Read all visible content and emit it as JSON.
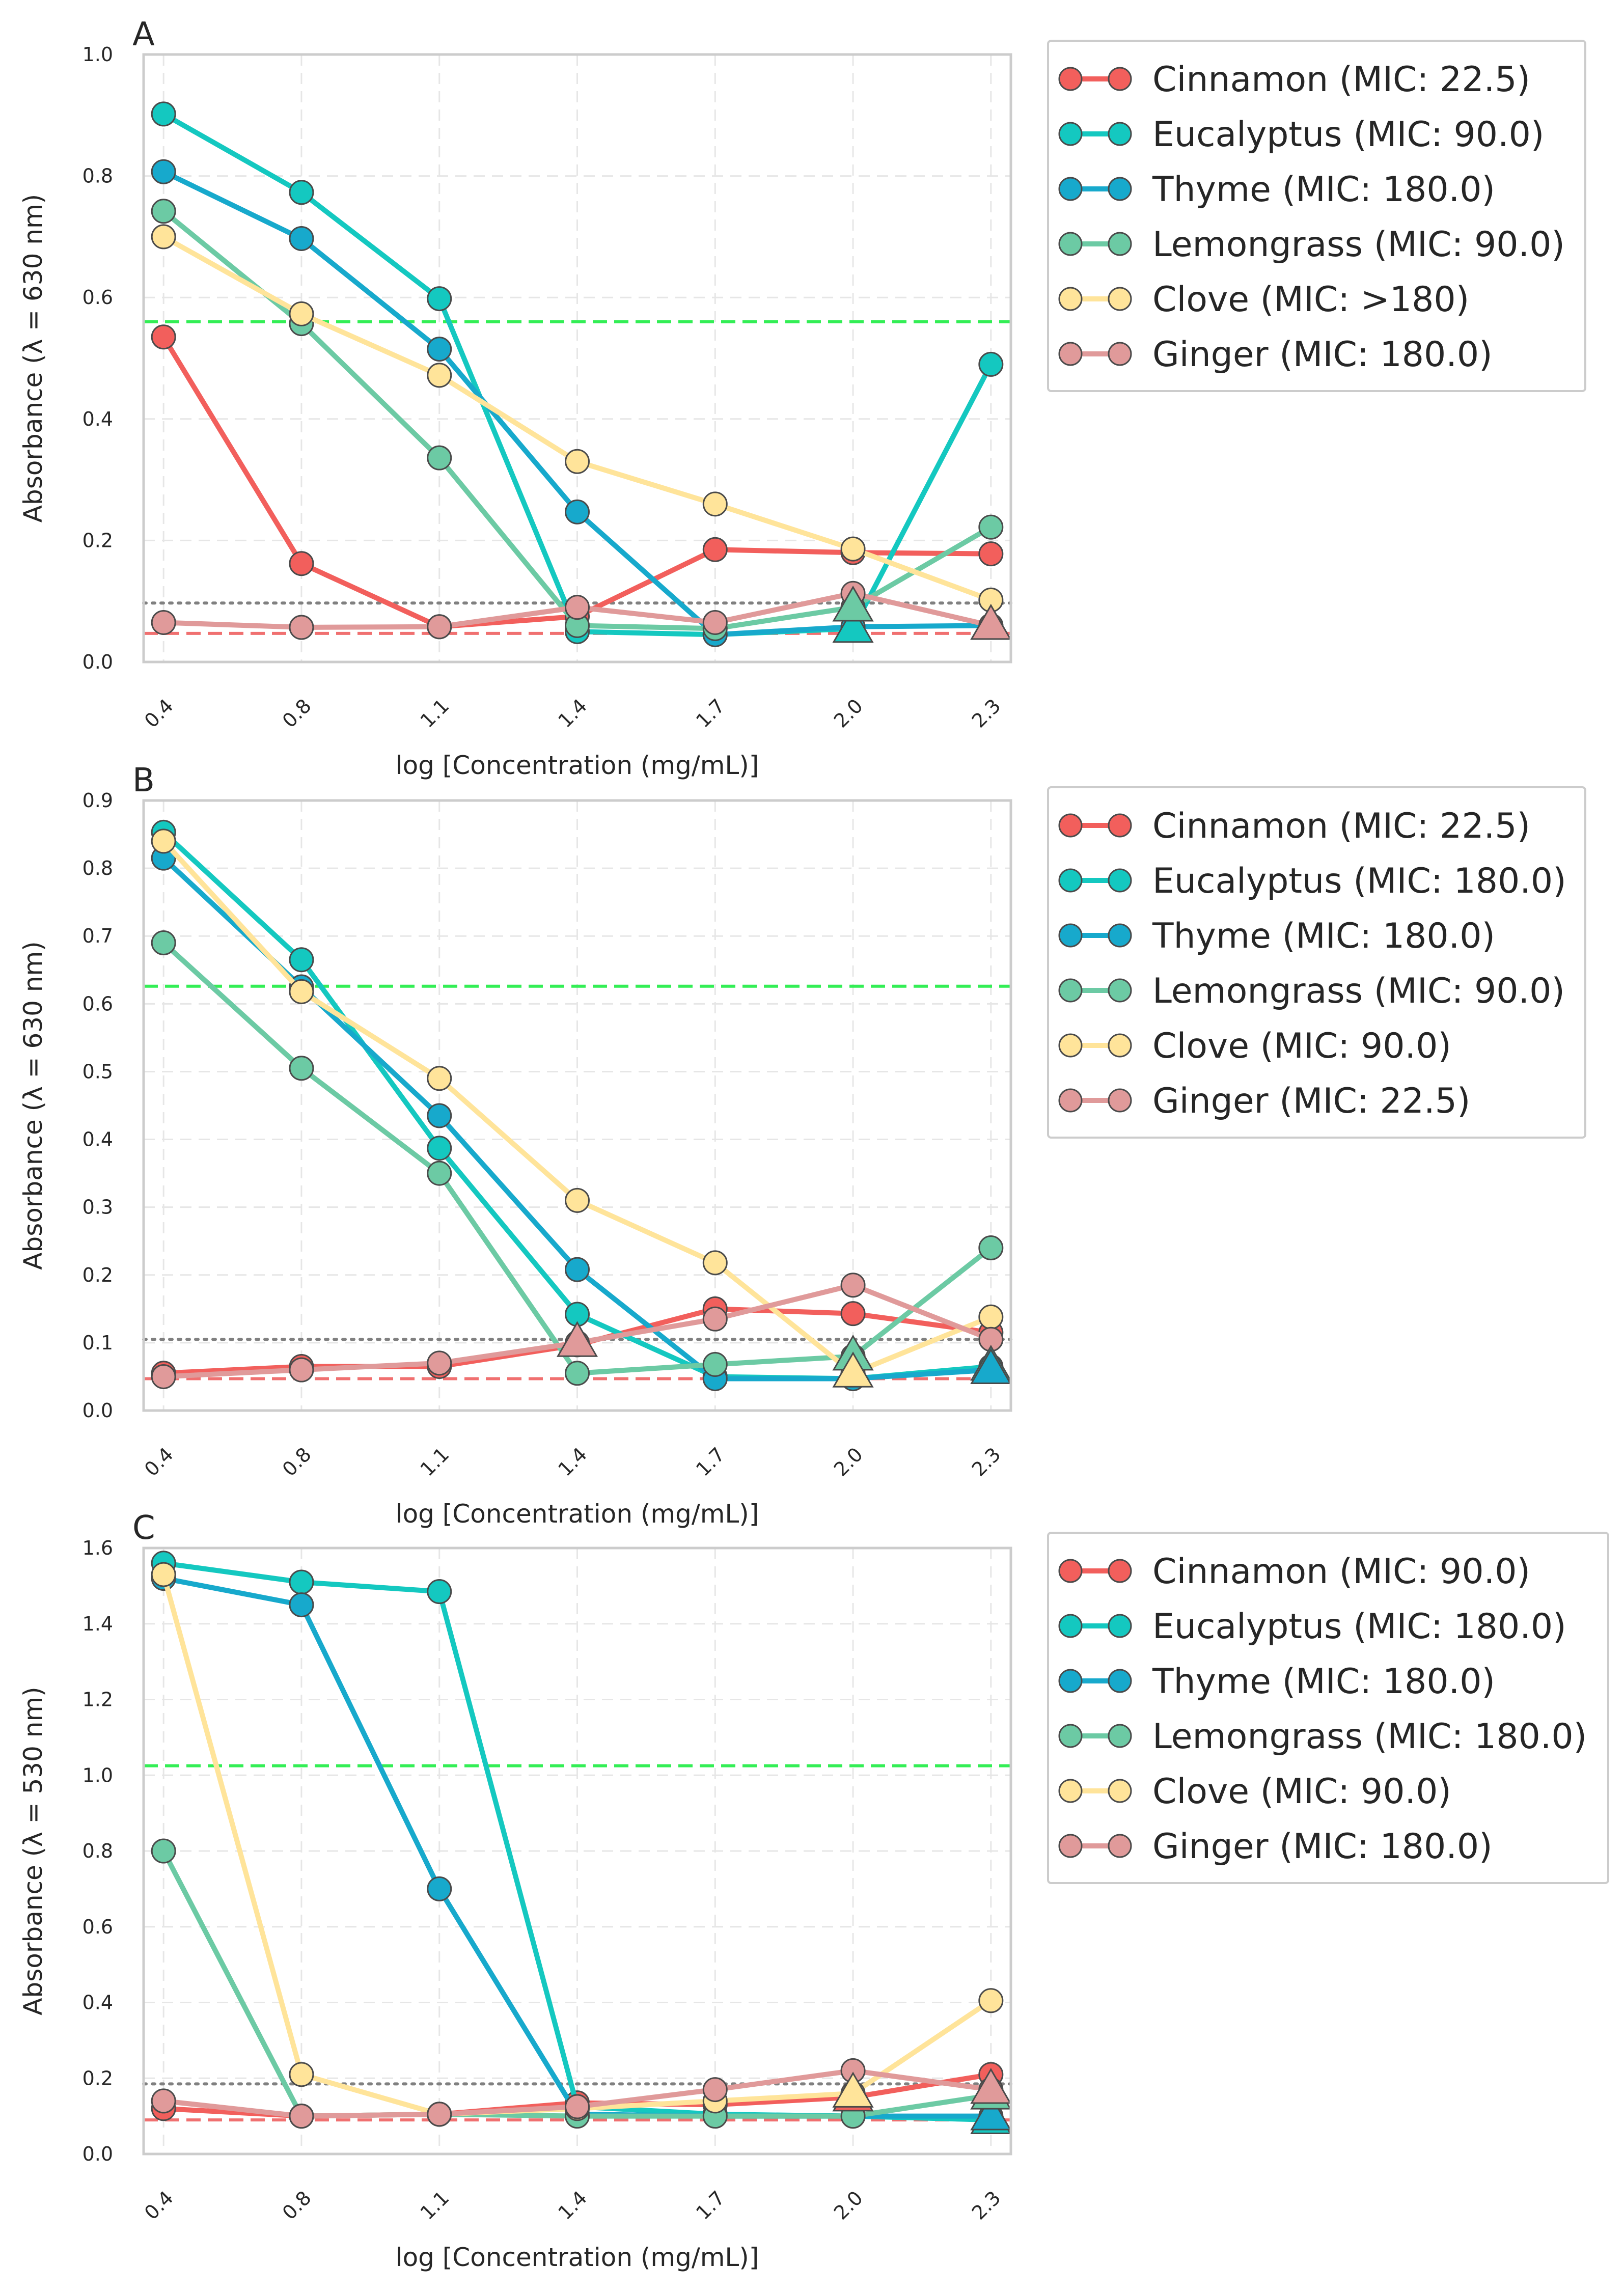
{
  "chart_data": [
    {
      "type": "line",
      "panel": "A",
      "xlabel": "log [Concentration (mg/mL)]",
      "ylabel": "Absorbance (λ = 630 nm)",
      "ylim": [
        0,
        1.0
      ],
      "yticks": [
        0.0,
        0.2,
        0.4,
        0.6,
        0.8,
        1.0
      ],
      "yticklabels": [
        "0.0",
        "0.2",
        "0.4",
        "0.6",
        "0.8",
        "1.0"
      ],
      "categories": [
        "0.4",
        "0.8",
        "1.1",
        "1.4",
        "1.7",
        "2.0",
        "2.3"
      ],
      "grid": true,
      "legend_position": "outside-right",
      "reference_lines": [
        {
          "style": "dashed",
          "color": "#33ee55",
          "y": 0.56
        },
        {
          "style": "dotted",
          "color": "#808080",
          "y": 0.097
        },
        {
          "style": "dashed",
          "color": "#f07070",
          "y": 0.047
        }
      ],
      "series": [
        {
          "name": "Cinnamon (MIC: 22.5)",
          "color": "#f25f5c",
          "values": [
            0.535,
            0.162,
            0.058,
            0.075,
            0.185,
            0.18,
            0.178
          ]
        },
        {
          "name": "Eucalyptus (MIC: 90.0)",
          "color": "#14c8c0",
          "values": [
            0.902,
            0.773,
            0.598,
            0.05,
            0.045,
            0.055,
            0.49
          ],
          "mic_marker_index": 5
        },
        {
          "name": "Thyme (MIC: 180.0)",
          "color": "#17a9cc",
          "values": [
            0.807,
            0.697,
            0.515,
            0.247,
            0.045,
            0.058,
            0.06
          ],
          "mic_marker_index": 6
        },
        {
          "name": "Lemongrass (MIC: 90.0)",
          "color": "#6ccaa4",
          "values": [
            0.742,
            0.557,
            0.336,
            0.06,
            0.055,
            0.09,
            0.222
          ],
          "mic_marker_index": 5
        },
        {
          "name": "Clove (MIC: >180)",
          "color": "#ffe49a",
          "values": [
            0.7,
            0.573,
            0.472,
            0.33,
            0.26,
            0.186,
            0.102
          ]
        },
        {
          "name": "Ginger (MIC: 180.0)",
          "color": "#e09a9a",
          "values": [
            0.065,
            0.057,
            0.058,
            0.09,
            0.065,
            0.113,
            0.06
          ],
          "mic_marker_index": 6
        }
      ]
    },
    {
      "type": "line",
      "panel": "B",
      "xlabel": "log [Concentration (mg/mL)]",
      "ylabel": "Absorbance (λ = 630 nm)",
      "ylim": [
        0,
        0.9
      ],
      "yticks": [
        0.0,
        0.1,
        0.2,
        0.3,
        0.4,
        0.5,
        0.6,
        0.7,
        0.8,
        0.9
      ],
      "yticklabels": [
        "0.0",
        "0.1",
        "0.2",
        "0.3",
        "0.4",
        "0.5",
        "0.6",
        "0.7",
        "0.8",
        "0.9"
      ],
      "categories": [
        "0.4",
        "0.8",
        "1.1",
        "1.4",
        "1.7",
        "2.0",
        "2.3"
      ],
      "grid": true,
      "legend_position": "outside-right",
      "reference_lines": [
        {
          "style": "dashed",
          "color": "#33ee55",
          "y": 0.626
        },
        {
          "style": "dotted",
          "color": "#808080",
          "y": 0.105
        },
        {
          "style": "dashed",
          "color": "#f07070",
          "y": 0.047
        }
      ],
      "series": [
        {
          "name": "Cinnamon (MIC: 22.5)",
          "color": "#f25f5c",
          "values": [
            0.055,
            0.065,
            0.065,
            0.097,
            0.15,
            0.143,
            0.115
          ]
        },
        {
          "name": "Eucalyptus (MIC: 180.0)",
          "color": "#14c8c0",
          "values": [
            0.853,
            0.665,
            0.387,
            0.142,
            0.05,
            0.047,
            0.065
          ],
          "mic_marker_index": 6
        },
        {
          "name": "Thyme (MIC: 180.0)",
          "color": "#17a9cc",
          "values": [
            0.815,
            0.625,
            0.435,
            0.208,
            0.047,
            0.047,
            0.06
          ],
          "mic_marker_index": 6
        },
        {
          "name": "Lemongrass (MIC: 90.0)",
          "color": "#6ccaa4",
          "values": [
            0.69,
            0.505,
            0.35,
            0.055,
            0.068,
            0.08,
            0.24
          ],
          "mic_marker_index": 5
        },
        {
          "name": "Clove (MIC: 90.0)",
          "color": "#ffe49a",
          "values": [
            0.84,
            0.618,
            0.49,
            0.31,
            0.218,
            0.055,
            0.138
          ],
          "mic_marker_index": 5
        },
        {
          "name": "Ginger (MIC: 22.5)",
          "color": "#e09a9a",
          "values": [
            0.05,
            0.06,
            0.07,
            0.1,
            0.135,
            0.185,
            0.105
          ],
          "mic_marker_index": 3
        }
      ]
    },
    {
      "type": "line",
      "panel": "C",
      "xlabel": "log [Concentration (mg/mL)]",
      "ylabel": "Absorbance (λ = 530 nm)",
      "ylim": [
        0,
        1.6
      ],
      "yticks": [
        0.0,
        0.2,
        0.4,
        0.6,
        0.8,
        1.0,
        1.2,
        1.4,
        1.6
      ],
      "yticklabels": [
        "0.0",
        "0.2",
        "0.4",
        "0.6",
        "0.8",
        "1.0",
        "1.2",
        "1.4",
        "1.6"
      ],
      "categories": [
        "0.4",
        "0.8",
        "1.1",
        "1.4",
        "1.7",
        "2.0",
        "2.3"
      ],
      "grid": true,
      "legend_position": "outside-right",
      "reference_lines": [
        {
          "style": "dashed",
          "color": "#33ee55",
          "y": 1.025
        },
        {
          "style": "dotted",
          "color": "#808080",
          "y": 0.185
        },
        {
          "style": "dashed",
          "color": "#f07070",
          "y": 0.09
        }
      ],
      "series": [
        {
          "name": "Cinnamon (MIC: 90.0)",
          "color": "#f25f5c",
          "values": [
            0.12,
            0.1,
            0.105,
            0.135,
            0.13,
            0.15,
            0.21
          ],
          "mic_marker_index": 5
        },
        {
          "name": "Eucalyptus (MIC: 180.0)",
          "color": "#14c8c0",
          "values": [
            1.56,
            1.51,
            1.485,
            0.125,
            0.105,
            0.1,
            0.09
          ],
          "mic_marker_index": 6
        },
        {
          "name": "Thyme (MIC: 180.0)",
          "color": "#17a9cc",
          "values": [
            1.52,
            1.45,
            0.7,
            0.105,
            0.1,
            0.1,
            0.1
          ],
          "mic_marker_index": 6
        },
        {
          "name": "Lemongrass (MIC: 180.0)",
          "color": "#6ccaa4",
          "values": [
            0.8,
            0.1,
            0.105,
            0.1,
            0.1,
            0.1,
            0.155
          ],
          "mic_marker_index": 6
        },
        {
          "name": "Clove (MIC: 90.0)",
          "color": "#ffe49a",
          "values": [
            1.53,
            0.21,
            0.105,
            0.12,
            0.14,
            0.16,
            0.405
          ],
          "mic_marker_index": 5
        },
        {
          "name": "Ginger (MIC: 180.0)",
          "color": "#e09a9a",
          "values": [
            0.14,
            0.1,
            0.105,
            0.125,
            0.17,
            0.22,
            0.17
          ],
          "mic_marker_index": 6
        }
      ]
    }
  ]
}
